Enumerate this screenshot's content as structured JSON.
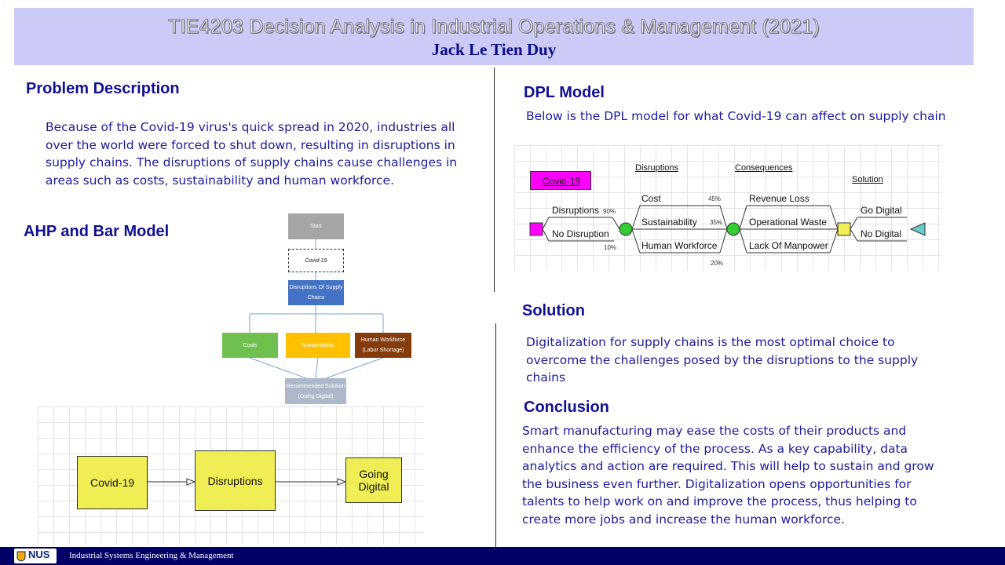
{
  "header": {
    "title": "TIE4203 Decision Analysis in Industrial Operations & Management (2021)",
    "author": "Jack Le Tien Duy"
  },
  "sections": {
    "problem": {
      "heading": "Problem Description",
      "lines": [
        "Because of the Covid-19 virus's quick spread in 2020, industries all",
        "over the world were forced to shut down, resulting in disruptions in",
        "supply chains. The disruptions of supply chains cause challenges in",
        "areas such as costs, sustainability and human workforce."
      ]
    },
    "ahp": {
      "heading": "AHP and Bar Model",
      "flow": {
        "start": "Start",
        "covid": "Covid-19",
        "disruptions_l1": "Disruptions Of Supply",
        "disruptions_l2": "Chains",
        "costs": "Costs",
        "sustainability": "Sustainability",
        "human_l1": "Human Workforce",
        "human_l2": "(Labor Shortage)",
        "rec_l1": "Recommended Solution",
        "rec_l2": "(Going Digital)"
      },
      "bar": {
        "covid": "Covid-19",
        "disruptions": "Disruptions",
        "digital_l1": "Going",
        "digital_l2": "Digital"
      }
    },
    "dpl": {
      "heading": "DPL Model",
      "caption": "Below is the DPL model for what Covid-19 can affect on supply chain",
      "diagram": {
        "covid_label": "Covid-19",
        "disruptions_head": "Disruptions",
        "consequences_head": "Consequences",
        "solution_head": "Solution",
        "branch_disruptions": "Disruptions",
        "branch_disruptions_pct": "90%",
        "branch_no_disruption": "No Disruption",
        "branch_no_disruption_pct": "10%",
        "cost": "Cost",
        "cost_pct": "45%",
        "sustainability": "Sustainability",
        "sustainability_pct": "35%",
        "human": "Human Workforce",
        "human_pct": "20%",
        "revenue": "Revenue Loss",
        "waste": "Operational Waste",
        "manpower": "Lack Of Manpower",
        "go_digital": "Go Digital",
        "no_digital": "No Digital"
      }
    },
    "solution": {
      "heading": "Solution",
      "lines": [
        "Digitalization for supply chains is the most optimal choice to",
        "overcome the challenges posed by the disruptions to the supply",
        "chains"
      ]
    },
    "conclusion": {
      "heading": "Conclusion",
      "lines": [
        "Smart manufacturing may ease the costs of their products and",
        "enhance the efficiency of the process. As a key capability, data",
        "analytics and action are required. This will help to sustain and grow",
        "the business even further. Digitalization opens opportunities for",
        "talents to help work on and improve the process, thus helping to",
        "create more jobs and increase the human workforce."
      ]
    }
  },
  "footer": {
    "logo_text": "NUS",
    "department": "Industrial Systems Engineering & Management"
  },
  "colors": {
    "header_bg": "#cccbf7",
    "heading": "#101090",
    "body": "#1c1c9a",
    "footer_bg": "#000066",
    "box_yellow": "#f0ee55",
    "covid_magenta": "#ff00ff",
    "chance_green": "#33cc33",
    "value_cyan": "#66cccc"
  }
}
